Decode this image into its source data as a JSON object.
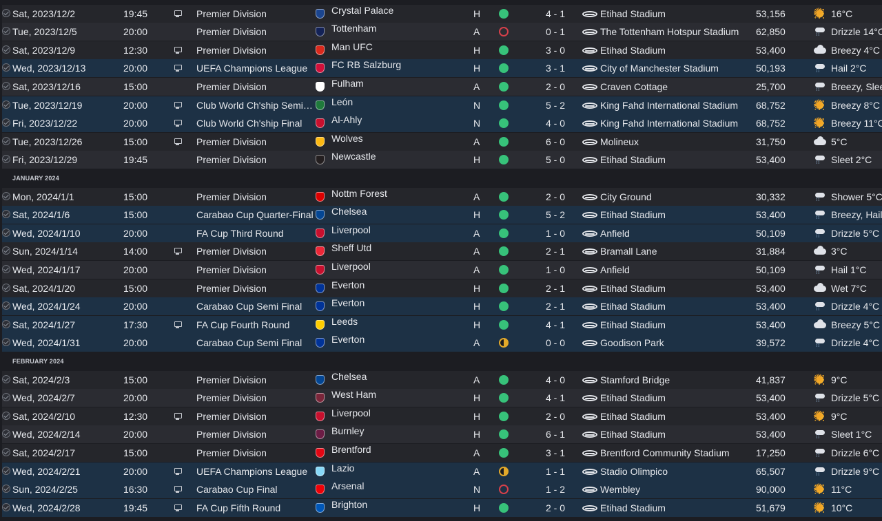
{
  "months": [
    "JANUARY 2024",
    "FEBRUARY 2024"
  ],
  "rows": [
    {
      "kind": "match",
      "style": "dark",
      "date": "Sat, 2023/12/2",
      "time": "19:45",
      "tv": true,
      "comp": "Premier Division",
      "opp": "Crystal Palace",
      "crest": "#1b458f",
      "venue": "H",
      "result": "win",
      "score": "4 - 1",
      "stadium": "Etihad Stadium",
      "att": "53,156",
      "wx": "sun",
      "weather": "16°C"
    },
    {
      "kind": "match",
      "style": "alt",
      "date": "Tue, 2023/12/5",
      "time": "20:00",
      "tv": false,
      "comp": "Premier Division",
      "opp": "Tottenham",
      "crest": "#132257",
      "venue": "A",
      "result": "loss",
      "score": "0 - 1",
      "stadium": "The Tottenham Hotspur Stadium",
      "att": "62,850",
      "wx": "rain",
      "weather": "Drizzle 14°C"
    },
    {
      "kind": "match",
      "style": "dark",
      "date": "Sat, 2023/12/9",
      "time": "12:30",
      "tv": true,
      "comp": "Premier Division",
      "opp": "Man UFC",
      "crest": "#da291c",
      "venue": "H",
      "result": "win",
      "score": "3 - 0",
      "stadium": "Etihad Stadium",
      "att": "53,400",
      "wx": "cloud",
      "weather": "Breezy 4°C"
    },
    {
      "kind": "match",
      "style": "euro",
      "date": "Wed, 2023/12/13",
      "time": "20:00",
      "tv": true,
      "comp": "UEFA Champions League",
      "opp": "FC RB Salzburg",
      "crest": "#d0103a",
      "venue": "H",
      "result": "win",
      "score": "3 - 1",
      "stadium": "City of Manchester Stadium",
      "att": "50,193",
      "wx": "rain",
      "weather": "Hail 2°C"
    },
    {
      "kind": "match",
      "style": "alt",
      "date": "Sat, 2023/12/16",
      "time": "15:00",
      "tv": false,
      "comp": "Premier Division",
      "opp": "Fulham",
      "crest": "#ffffff",
      "venue": "A",
      "result": "win",
      "score": "2 - 0",
      "stadium": "Craven Cottage",
      "att": "25,700",
      "wx": "rain",
      "weather": "Breezy, Sleet"
    },
    {
      "kind": "match",
      "style": "euro",
      "date": "Tue, 2023/12/19",
      "time": "20:00",
      "tv": true,
      "comp": "Club World Ch'ship Semi-Final",
      "opp": "León",
      "crest": "#1f7a3c",
      "venue": "N",
      "result": "win",
      "score": "5 - 2",
      "stadium": "King Fahd International Stadium",
      "att": "68,752",
      "wx": "sun",
      "weather": "Breezy 8°C"
    },
    {
      "kind": "match",
      "style": "euro",
      "date": "Fri, 2023/12/22",
      "time": "20:00",
      "tv": true,
      "comp": "Club World Ch'ship Final",
      "opp": "Al-Ahly",
      "crest": "#c8102e",
      "venue": "N",
      "result": "win",
      "score": "4 - 0",
      "stadium": "King Fahd International Stadium",
      "att": "68,752",
      "wx": "sun",
      "weather": "Breezy 11°C"
    },
    {
      "kind": "match",
      "style": "dark",
      "date": "Tue, 2023/12/26",
      "time": "15:00",
      "tv": true,
      "comp": "Premier Division",
      "opp": "Wolves",
      "crest": "#fdb913",
      "venue": "A",
      "result": "win",
      "score": "6 - 0",
      "stadium": "Molineux",
      "att": "31,750",
      "wx": "cloud",
      "weather": "5°C"
    },
    {
      "kind": "match",
      "style": "alt",
      "date": "Fri, 2023/12/29",
      "time": "19:45",
      "tv": false,
      "comp": "Premier Division",
      "opp": "Newcastle",
      "crest": "#241f20",
      "venue": "H",
      "result": "win",
      "score": "5 - 0",
      "stadium": "Etihad Stadium",
      "att": "53,400",
      "wx": "rain",
      "weather": "Sleet 2°C"
    },
    {
      "kind": "month",
      "label_index": 0
    },
    {
      "kind": "match",
      "style": "dark",
      "date": "Mon, 2024/1/1",
      "time": "15:00",
      "tv": false,
      "comp": "Premier Division",
      "opp": "Nottm Forest",
      "crest": "#dd0000",
      "venue": "A",
      "result": "win",
      "score": "2 - 0",
      "stadium": "City Ground",
      "att": "30,332",
      "wx": "rain",
      "weather": "Shower 5°C"
    },
    {
      "kind": "match",
      "style": "euro",
      "date": "Sat, 2024/1/6",
      "time": "15:00",
      "tv": false,
      "comp": "Carabao Cup Quarter-Final",
      "opp": "Chelsea",
      "crest": "#034694",
      "venue": "H",
      "result": "win",
      "score": "5 - 2",
      "stadium": "Etihad Stadium",
      "att": "53,400",
      "wx": "rain",
      "weather": "Breezy, Hail"
    },
    {
      "kind": "match",
      "style": "euro",
      "date": "Wed, 2024/1/10",
      "time": "20:00",
      "tv": false,
      "comp": "FA Cup Third Round",
      "opp": "Liverpool",
      "crest": "#c8102e",
      "venue": "A",
      "result": "win",
      "score": "1 - 0",
      "stadium": "Anfield",
      "att": "50,109",
      "wx": "rain",
      "weather": "Drizzle 5°C"
    },
    {
      "kind": "match",
      "style": "dark",
      "date": "Sun, 2024/1/14",
      "time": "14:00",
      "tv": true,
      "comp": "Premier Division",
      "opp": "Sheff Utd",
      "crest": "#ee2737",
      "venue": "A",
      "result": "win",
      "score": "2 - 1",
      "stadium": "Bramall Lane",
      "att": "31,884",
      "wx": "cloud",
      "weather": "3°C"
    },
    {
      "kind": "match",
      "style": "alt",
      "date": "Wed, 2024/1/17",
      "time": "20:00",
      "tv": false,
      "comp": "Premier Division",
      "opp": "Liverpool",
      "crest": "#c8102e",
      "venue": "A",
      "result": "win",
      "score": "1 - 0",
      "stadium": "Anfield",
      "att": "50,109",
      "wx": "rain",
      "weather": "Hail 1°C"
    },
    {
      "kind": "match",
      "style": "dark",
      "date": "Sat, 2024/1/20",
      "time": "15:00",
      "tv": false,
      "comp": "Premier Division",
      "opp": "Everton",
      "crest": "#003399",
      "venue": "H",
      "result": "win",
      "score": "2 - 1",
      "stadium": "Etihad Stadium",
      "att": "53,400",
      "wx": "cloud",
      "weather": "Wet 7°C"
    },
    {
      "kind": "match",
      "style": "euro",
      "date": "Wed, 2024/1/24",
      "time": "20:00",
      "tv": false,
      "comp": "Carabao Cup Semi Final",
      "opp": "Everton",
      "crest": "#003399",
      "venue": "H",
      "result": "win",
      "score": "2 - 1",
      "stadium": "Etihad Stadium",
      "att": "53,400",
      "wx": "rain",
      "weather": "Drizzle 4°C"
    },
    {
      "kind": "match",
      "style": "euro",
      "date": "Sat, 2024/1/27",
      "time": "17:30",
      "tv": true,
      "comp": "FA Cup Fourth Round",
      "opp": "Leeds",
      "crest": "#ffcd00",
      "venue": "H",
      "result": "win",
      "score": "4 - 1",
      "stadium": "Etihad Stadium",
      "att": "53,400",
      "wx": "cloud",
      "weather": "Breezy 5°C"
    },
    {
      "kind": "match",
      "style": "euro",
      "date": "Wed, 2024/1/31",
      "time": "20:00",
      "tv": false,
      "comp": "Carabao Cup Semi Final",
      "opp": "Everton",
      "crest": "#003399",
      "venue": "A",
      "result": "draw",
      "score": "0 - 0",
      "stadium": "Goodison Park",
      "att": "39,572",
      "wx": "rain",
      "weather": "Drizzle 4°C"
    },
    {
      "kind": "month",
      "label_index": 1
    },
    {
      "kind": "match",
      "style": "dark",
      "date": "Sat, 2024/2/3",
      "time": "15:00",
      "tv": false,
      "comp": "Premier Division",
      "opp": "Chelsea",
      "crest": "#034694",
      "venue": "A",
      "result": "win",
      "score": "4 - 0",
      "stadium": "Stamford Bridge",
      "att": "41,837",
      "wx": "sun",
      "weather": "9°C"
    },
    {
      "kind": "match",
      "style": "alt",
      "date": "Wed, 2024/2/7",
      "time": "20:00",
      "tv": false,
      "comp": "Premier Division",
      "opp": "West Ham",
      "crest": "#7a263a",
      "venue": "H",
      "result": "win",
      "score": "4 - 1",
      "stadium": "Etihad Stadium",
      "att": "53,400",
      "wx": "rain",
      "weather": "Drizzle 5°C"
    },
    {
      "kind": "match",
      "style": "dark",
      "date": "Sat, 2024/2/10",
      "time": "12:30",
      "tv": true,
      "comp": "Premier Division",
      "opp": "Liverpool",
      "crest": "#c8102e",
      "venue": "H",
      "result": "win",
      "score": "2 - 0",
      "stadium": "Etihad Stadium",
      "att": "53,400",
      "wx": "sun",
      "weather": "9°C"
    },
    {
      "kind": "match",
      "style": "alt",
      "date": "Wed, 2024/2/14",
      "time": "20:00",
      "tv": false,
      "comp": "Premier Division",
      "opp": "Burnley",
      "crest": "#6c1d45",
      "venue": "H",
      "result": "win",
      "score": "6 - 1",
      "stadium": "Etihad Stadium",
      "att": "53,400",
      "wx": "rain",
      "weather": "Sleet 1°C"
    },
    {
      "kind": "match",
      "style": "dark",
      "date": "Sat, 2024/2/17",
      "time": "15:00",
      "tv": false,
      "comp": "Premier Division",
      "opp": "Brentford",
      "crest": "#e30613",
      "venue": "A",
      "result": "win",
      "score": "3 - 1",
      "stadium": "Brentford Community Stadium",
      "att": "17,250",
      "wx": "rain",
      "weather": "Drizzle 6°C"
    },
    {
      "kind": "match",
      "style": "euro",
      "date": "Wed, 2024/2/21",
      "time": "20:00",
      "tv": true,
      "comp": "UEFA Champions League",
      "opp": "Lazio",
      "crest": "#87d8f7",
      "venue": "A",
      "result": "draw",
      "score": "1 - 1",
      "stadium": "Stadio Olimpico",
      "att": "65,507",
      "wx": "rain",
      "weather": "Drizzle 9°C"
    },
    {
      "kind": "match",
      "style": "euro",
      "date": "Sun, 2024/2/25",
      "time": "16:30",
      "tv": true,
      "comp": "Carabao Cup Final",
      "opp": "Arsenal",
      "crest": "#ef0107",
      "venue": "N",
      "result": "loss",
      "score": "1 - 2",
      "stadium": "Wembley",
      "att": "90,000",
      "wx": "sun",
      "weather": "11°C"
    },
    {
      "kind": "match",
      "style": "euro",
      "date": "Wed, 2024/2/28",
      "time": "19:45",
      "tv": true,
      "comp": "FA Cup Fifth Round",
      "opp": "Brighton",
      "crest": "#0057b8",
      "venue": "H",
      "result": "win",
      "score": "2 - 0",
      "stadium": "Etihad Stadium",
      "att": "51,679",
      "wx": "sun",
      "weather": "10°C"
    }
  ],
  "icons": {
    "tv": "tv-icon",
    "check": "check-icon",
    "stadium": "stadium-icon",
    "sun": "sun-icon",
    "cloud": "cloud-icon",
    "rain": "rain-cloud-icon"
  }
}
